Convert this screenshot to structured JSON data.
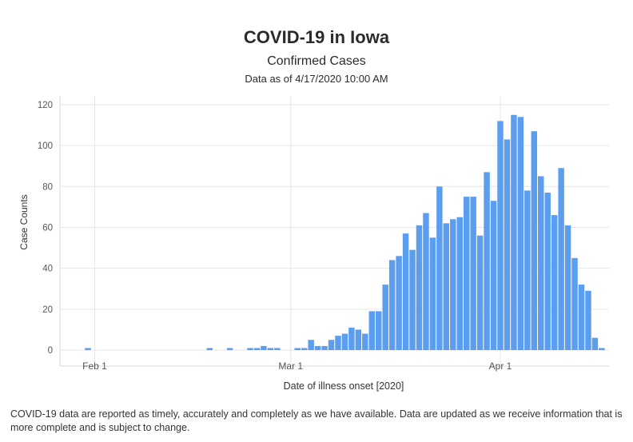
{
  "header": {
    "title": "COVID-19 in Iowa",
    "subtitle": "Confirmed Cases",
    "as_of": "Data as of 4/17/2020 10:00 AM"
  },
  "footnote": "COVID-19 data are reported as timely, accurately and completely as we have available.  Data are updated as we receive information that is more complete and is subject to change.",
  "colors": {
    "bar": "#5b9ef0",
    "grid": "#e6e6e6",
    "axis": "#d9d9d9",
    "text": "#555555"
  },
  "chart_data": {
    "type": "bar",
    "title": "COVID-19 in Iowa",
    "subtitle": "Confirmed Cases",
    "xlabel": "Date of illness onset [2020]",
    "ylabel": "Case Counts",
    "ylim": [
      0,
      120
    ],
    "yticks": [
      0,
      20,
      40,
      60,
      80,
      100,
      120
    ],
    "xticks": [
      {
        "label": "Feb 1",
        "date": "2020-02-01"
      },
      {
        "label": "Mar 1",
        "date": "2020-03-01"
      },
      {
        "label": "Apr 1",
        "date": "2020-04-01"
      }
    ],
    "xlim": [
      "2020-01-25",
      "2020-04-15"
    ],
    "grid": true,
    "data": [
      {
        "date": "2020-01-31",
        "value": 1
      },
      {
        "date": "2020-02-18",
        "value": 1
      },
      {
        "date": "2020-02-21",
        "value": 1
      },
      {
        "date": "2020-02-24",
        "value": 1
      },
      {
        "date": "2020-02-25",
        "value": 1
      },
      {
        "date": "2020-02-26",
        "value": 2
      },
      {
        "date": "2020-02-27",
        "value": 1
      },
      {
        "date": "2020-02-28",
        "value": 1
      },
      {
        "date": "2020-03-02",
        "value": 1
      },
      {
        "date": "2020-03-03",
        "value": 1
      },
      {
        "date": "2020-03-04",
        "value": 5
      },
      {
        "date": "2020-03-05",
        "value": 2
      },
      {
        "date": "2020-03-06",
        "value": 2
      },
      {
        "date": "2020-03-07",
        "value": 5
      },
      {
        "date": "2020-03-08",
        "value": 7
      },
      {
        "date": "2020-03-09",
        "value": 8
      },
      {
        "date": "2020-03-10",
        "value": 11
      },
      {
        "date": "2020-03-11",
        "value": 10
      },
      {
        "date": "2020-03-12",
        "value": 8
      },
      {
        "date": "2020-03-13",
        "value": 19
      },
      {
        "date": "2020-03-14",
        "value": 19
      },
      {
        "date": "2020-03-15",
        "value": 32
      },
      {
        "date": "2020-03-16",
        "value": 44
      },
      {
        "date": "2020-03-17",
        "value": 46
      },
      {
        "date": "2020-03-18",
        "value": 57
      },
      {
        "date": "2020-03-19",
        "value": 49
      },
      {
        "date": "2020-03-20",
        "value": 61
      },
      {
        "date": "2020-03-21",
        "value": 67
      },
      {
        "date": "2020-03-22",
        "value": 55
      },
      {
        "date": "2020-03-23",
        "value": 80
      },
      {
        "date": "2020-03-24",
        "value": 62
      },
      {
        "date": "2020-03-25",
        "value": 64
      },
      {
        "date": "2020-03-26",
        "value": 65
      },
      {
        "date": "2020-03-27",
        "value": 75
      },
      {
        "date": "2020-03-28",
        "value": 75
      },
      {
        "date": "2020-03-29",
        "value": 56
      },
      {
        "date": "2020-03-30",
        "value": 87
      },
      {
        "date": "2020-03-31",
        "value": 73
      },
      {
        "date": "2020-04-01",
        "value": 112
      },
      {
        "date": "2020-04-02",
        "value": 103
      },
      {
        "date": "2020-04-03",
        "value": 115
      },
      {
        "date": "2020-04-04",
        "value": 114
      },
      {
        "date": "2020-04-05",
        "value": 78
      },
      {
        "date": "2020-04-06",
        "value": 107
      },
      {
        "date": "2020-04-07",
        "value": 85
      },
      {
        "date": "2020-04-08",
        "value": 77
      },
      {
        "date": "2020-04-09",
        "value": 66
      },
      {
        "date": "2020-04-10",
        "value": 89
      },
      {
        "date": "2020-04-11",
        "value": 61
      },
      {
        "date": "2020-04-12",
        "value": 45
      },
      {
        "date": "2020-04-13",
        "value": 32
      },
      {
        "date": "2020-04-14",
        "value": 29
      },
      {
        "date": "2020-04-15",
        "value": 6
      },
      {
        "date": "2020-04-16",
        "value": 1
      }
    ]
  }
}
